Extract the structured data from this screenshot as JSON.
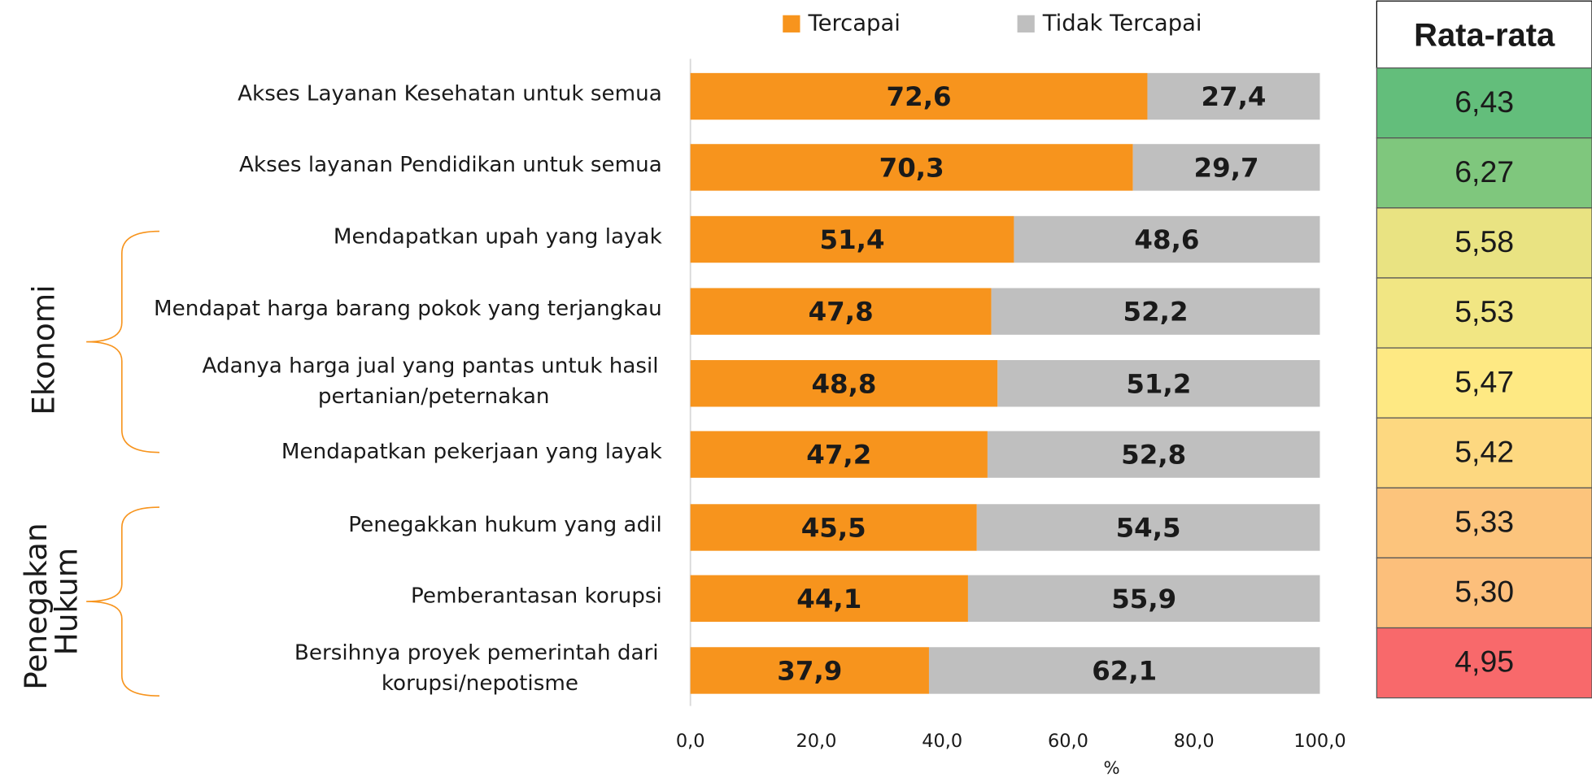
{
  "chart_data": {
    "type": "stacked-barh",
    "categories": [
      "Akses Layanan Kesehatan untuk semua",
      "Akses layanan Pendidikan untuk semua",
      "Mendapatkan upah yang layak",
      "Mendapat harga barang pokok yang terjangkau",
      "Adanya harga jual yang pantas untuk hasil pertanian/peternakan",
      "Mendapatkan pekerjaan yang layak",
      "Penegakkan hukum yang adil",
      "Pemberantasan korupsi",
      "Bersihnya proyek pemerintah dari korupsi/nepotisme"
    ],
    "series": [
      {
        "name": "Tercapai",
        "color": "#f7941d",
        "values": [
          72.6,
          70.3,
          51.4,
          47.8,
          48.8,
          47.2,
          45.5,
          44.1,
          37.9
        ],
        "value_labels": [
          "72,6",
          "70,3",
          "51,4",
          "47,8",
          "48,8",
          "47,2",
          "45,5",
          "44,1",
          "37,9"
        ]
      },
      {
        "name": "Tidak Tercapai",
        "color": "#bfbfbf",
        "values": [
          27.4,
          29.7,
          48.6,
          52.2,
          51.2,
          52.8,
          54.5,
          55.9,
          62.1
        ],
        "value_labels": [
          "27,4",
          "29,7",
          "48,6",
          "52,2",
          "51,2",
          "52,8",
          "54,5",
          "55,9",
          "62,1"
        ]
      }
    ],
    "xlim": [
      0,
      100
    ],
    "xticks": [
      {
        "value": 0,
        "label": "0,0"
      },
      {
        "value": 20,
        "label": "20,0"
      },
      {
        "value": 40,
        "label": "40,0"
      },
      {
        "value": 60,
        "label": "60,0"
      },
      {
        "value": 80,
        "label": "80,0"
      },
      {
        "value": 100,
        "label": "100,0"
      }
    ],
    "xlabel": "%",
    "legend": "top",
    "groups": [
      {
        "label": "Ekonomi"
      },
      {
        "label": "Penegakan Hukum"
      }
    ]
  },
  "table": {
    "header": "Rata-rata",
    "values": [
      6.43,
      6.27,
      5.58,
      5.53,
      5.47,
      5.42,
      5.33,
      5.3,
      4.95
    ],
    "value_labels": [
      "6,43",
      "6,27",
      "5,58",
      "5,53",
      "5,47",
      "5,42",
      "5,33",
      "5,30",
      "4,95"
    ],
    "colors": [
      "#63be7b",
      "#7fc77d",
      "#e9e382",
      "#f1e683",
      "#fee983",
      "#fdd880",
      "#fcc47c",
      "#fcbf7b",
      "#f8696b"
    ]
  }
}
